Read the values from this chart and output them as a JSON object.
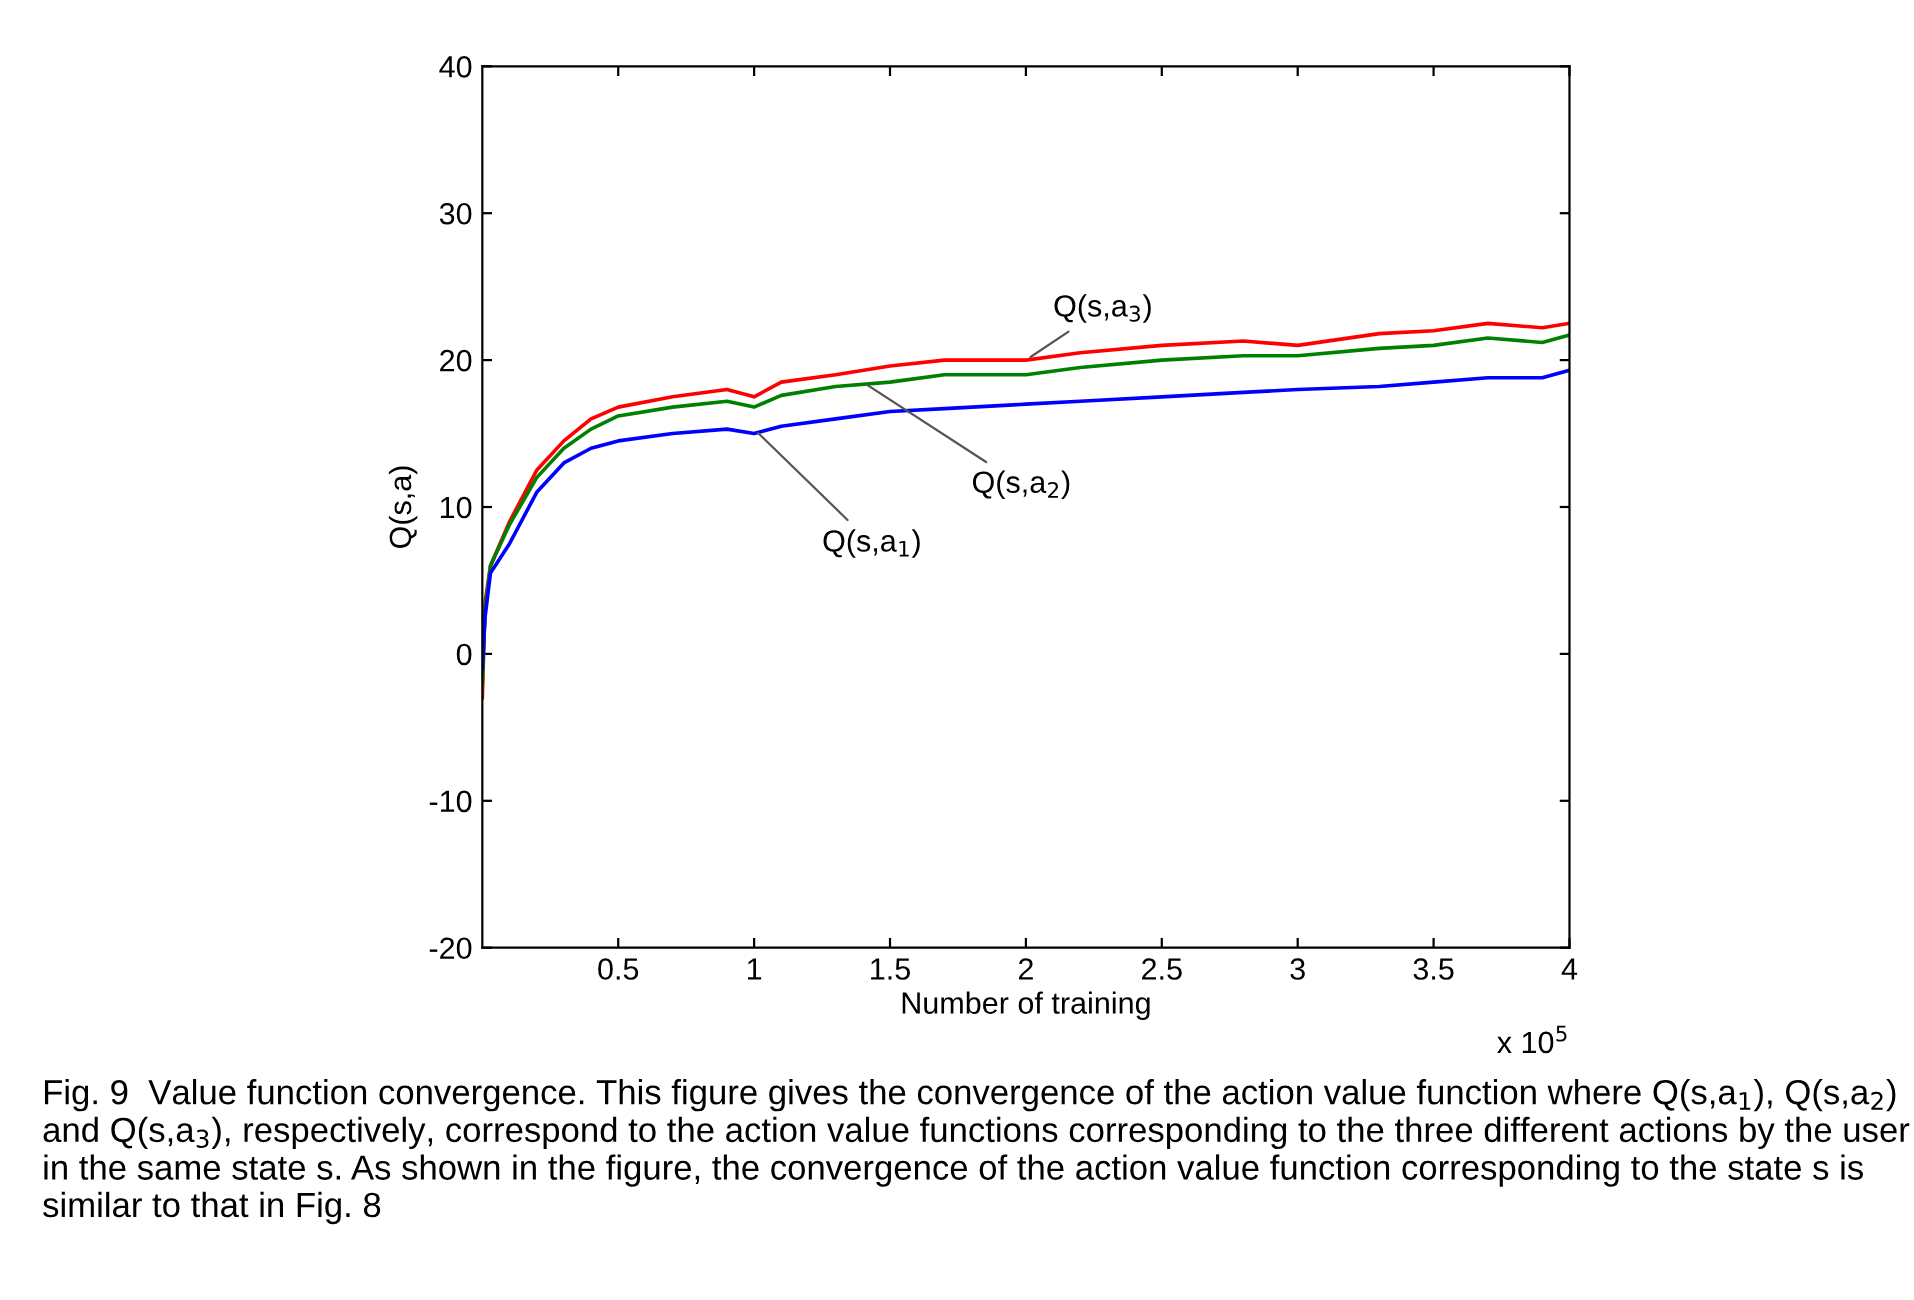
{
  "chart_data": {
    "type": "line",
    "xlabel": "Number of training",
    "ylabel": "Q(s,a)",
    "xlim": [
      0,
      4
    ],
    "ylim": [
      -20,
      40
    ],
    "xticks": [
      0.5,
      1,
      1.5,
      2,
      2.5,
      3,
      3.5,
      4
    ],
    "yticks": [
      -20,
      -10,
      0,
      10,
      20,
      30,
      40
    ],
    "grid": false,
    "legend": false,
    "marker": "none",
    "line_style": "solid",
    "series": [
      {
        "color": "#ff0000",
        "x": [
          0,
          0.01,
          0.03,
          0.1,
          0.2,
          0.3,
          0.4,
          0.5,
          0.7,
          0.9,
          1.0,
          1.1,
          1.3,
          1.5,
          1.7,
          2.0,
          2.2,
          2.5,
          2.8,
          3.0,
          3.3,
          3.5,
          3.7,
          3.9,
          4.0
        ],
        "values": [
          -3,
          3.5,
          6,
          9,
          12.5,
          14.5,
          16,
          16.8,
          17.5,
          18,
          17.5,
          18.5,
          19,
          19.6,
          20,
          20,
          20.5,
          21,
          21.3,
          21,
          21.8,
          22,
          22.5,
          22.2,
          22.5
        ]
      },
      {
        "color": "#008000",
        "x": [
          0,
          0.01,
          0.03,
          0.1,
          0.2,
          0.3,
          0.4,
          0.5,
          0.7,
          0.9,
          1.0,
          1.1,
          1.3,
          1.5,
          1.7,
          2.0,
          2.2,
          2.5,
          2.8,
          3.0,
          3.3,
          3.5,
          3.7,
          3.9,
          4.0
        ],
        "values": [
          -2,
          3,
          6,
          8.8,
          12,
          14,
          15.3,
          16.2,
          16.8,
          17.2,
          16.8,
          17.6,
          18.2,
          18.5,
          19,
          19,
          19.5,
          20,
          20.3,
          20.3,
          20.8,
          21,
          21.5,
          21.2,
          21.7
        ]
      },
      {
        "color": "#0000ff",
        "x": [
          0,
          0.01,
          0.03,
          0.1,
          0.2,
          0.3,
          0.4,
          0.5,
          0.7,
          0.9,
          1.0,
          1.1,
          1.3,
          1.5,
          1.7,
          2.0,
          2.2,
          2.5,
          2.8,
          3.0,
          3.3,
          3.5,
          3.7,
          3.9,
          4.0
        ],
        "values": [
          -1,
          2.5,
          5.5,
          7.5,
          11,
          13,
          14,
          14.5,
          15,
          15.3,
          15,
          15.5,
          16,
          16.5,
          16.7,
          17,
          17.2,
          17.5,
          17.8,
          18,
          18.2,
          18.5,
          18.8,
          18.8,
          19.3
        ]
      }
    ],
    "annotations": [
      {
        "text": "Q(s,a$_{3}$)",
        "x": 2.0,
        "y": 20
      },
      {
        "text": "Q(s,a$_{2}$)",
        "x": 1.4,
        "y": 18.5
      },
      {
        "text": "Q(s,a$_{1}$)",
        "x": 1.0,
        "y": 15.3
      },
      "x 10$^{5}$",
      "Fig. 9  Value function convergence. This figure gives the convergence of the action value function where Q(s,a$_{1}$), Q(s,a$_{2}$) and Q(s,a$_{3}$), respectively, correspond to the action value functions corresponding to the three different actions by the user in the same state s. As shown in the figure, the convergence of the action value function corresponding to the state s is similar to that in Fig. 8"
    ]
  }
}
